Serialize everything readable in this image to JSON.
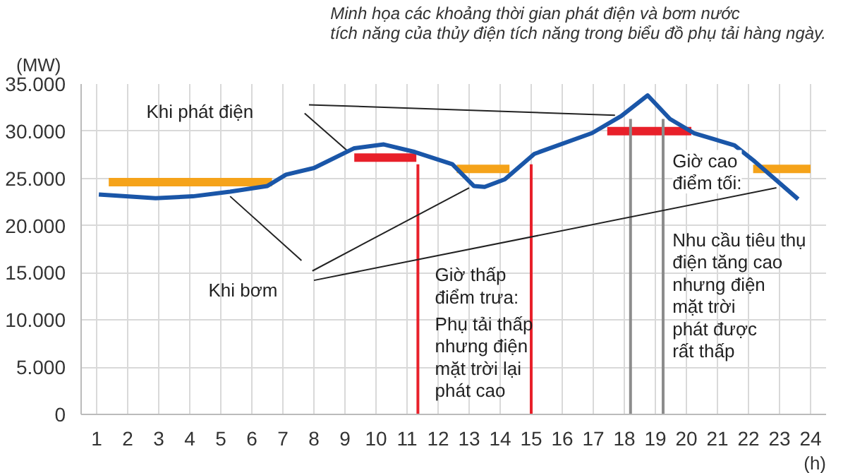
{
  "chart_data": {
    "type": "line",
    "title": "Minh họa các khoảng thời gian phát điện và bơm nước\ntích năng của thủy điện tích năng trong biểu đồ phụ tải hàng ngày.",
    "ylabel": "(MW)",
    "xlabel": "(h)",
    "xlim": [
      0.5,
      24.5
    ],
    "xticks": [
      1,
      2,
      3,
      4,
      5,
      6,
      7,
      8,
      9,
      10,
      11,
      12,
      13,
      14,
      15,
      16,
      17,
      18,
      19,
      20,
      21,
      22,
      23,
      24
    ],
    "ylim": [
      0,
      35000
    ],
    "yticks": [
      {
        "value": 0,
        "label": "0"
      },
      {
        "value": 5000,
        "label": "5.000"
      },
      {
        "value": 10000,
        "label": "10.000"
      },
      {
        "value": 15000,
        "label": "15.000"
      },
      {
        "value": 20000,
        "label": "20.000"
      },
      {
        "value": 25000,
        "label": "25.000"
      },
      {
        "value": 30000,
        "label": "30.000"
      },
      {
        "value": 35000,
        "label": "35.000"
      }
    ],
    "grid": true,
    "marker": "none",
    "line_style": "solid",
    "series": [
      {
        "color": "#1a56a8",
        "x": [
          1.07,
          2.9,
          4.1,
          5.3,
          6.5,
          7.1,
          8.0,
          9.3,
          10.25,
          11.25,
          12.46,
          13.15,
          13.5,
          14.15,
          15.1,
          16.96,
          17.9,
          18.75,
          19.47,
          20.24,
          21.55,
          22.2,
          23.6
        ],
        "values": [
          23300,
          22900,
          23100,
          23600,
          24200,
          25400,
          26100,
          28200,
          28600,
          27800,
          26500,
          24200,
          24100,
          24900,
          27600,
          29800,
          31600,
          33800,
          31300,
          29800,
          28500,
          26800,
          22800
        ]
      },
      {
        "color": "#f5a31a",
        "x": [
          1.39,
          6.65
        ],
        "values": [
          24600,
          24600
        ]
      },
      {
        "color": "#f5a31a",
        "x": [
          12.6,
          14.3
        ],
        "values": [
          26000,
          26000
        ]
      },
      {
        "color": "#f5a31a",
        "x": [
          22.15,
          24.0
        ],
        "values": [
          26000,
          26000
        ]
      },
      {
        "color": "#e8202a",
        "x": [
          9.3,
          11.3
        ],
        "values": [
          27200,
          27200
        ]
      },
      {
        "color": "#e8202a",
        "x": [
          17.45,
          20.16
        ],
        "values": [
          30000,
          30000
        ]
      },
      {
        "color": "#e8202a",
        "x": [
          11.35,
          11.35
        ],
        "values": [
          26500,
          0
        ]
      },
      {
        "color": "#e8202a",
        "x": [
          15.0,
          15.0
        ],
        "values": [
          26500,
          0
        ]
      },
      {
        "color": "#8c8c8c",
        "x": [
          18.2,
          18.2
        ],
        "values": [
          31300,
          0
        ]
      },
      {
        "color": "#8c8c8c",
        "x": [
          19.25,
          19.25
        ],
        "values": [
          31300,
          0
        ]
      },
      {
        "color": "#222222",
        "x": [
          7.84,
          17.7
        ],
        "values": [
          32800,
          31700
        ]
      },
      {
        "color": "#222222",
        "x": [
          7.7,
          9.05
        ],
        "values": [
          31900,
          28000
        ]
      },
      {
        "color": "#222222",
        "x": [
          7.6,
          5.3
        ],
        "values": [
          16300,
          23100
        ]
      },
      {
        "color": "#222222",
        "x": [
          7.95,
          13.0
        ],
        "values": [
          15200,
          24000
        ]
      },
      {
        "color": "#222222",
        "x": [
          8.0,
          22.9
        ],
        "values": [
          14200,
          24000
        ]
      }
    ],
    "annotations": [
      "Khi phát điện",
      "Khi bơm",
      "Giờ thấp\nđiểm trưa:",
      "Phụ tải thấp\nnhưng điện\nmặt trời lại\nphát cao",
      "Giờ cao\nđiểm tối:",
      "Nhu cầu tiêu thụ\nđiện tăng cao\nnhưng điện\nmặt trời\nphát được\nrất thấp"
    ]
  }
}
